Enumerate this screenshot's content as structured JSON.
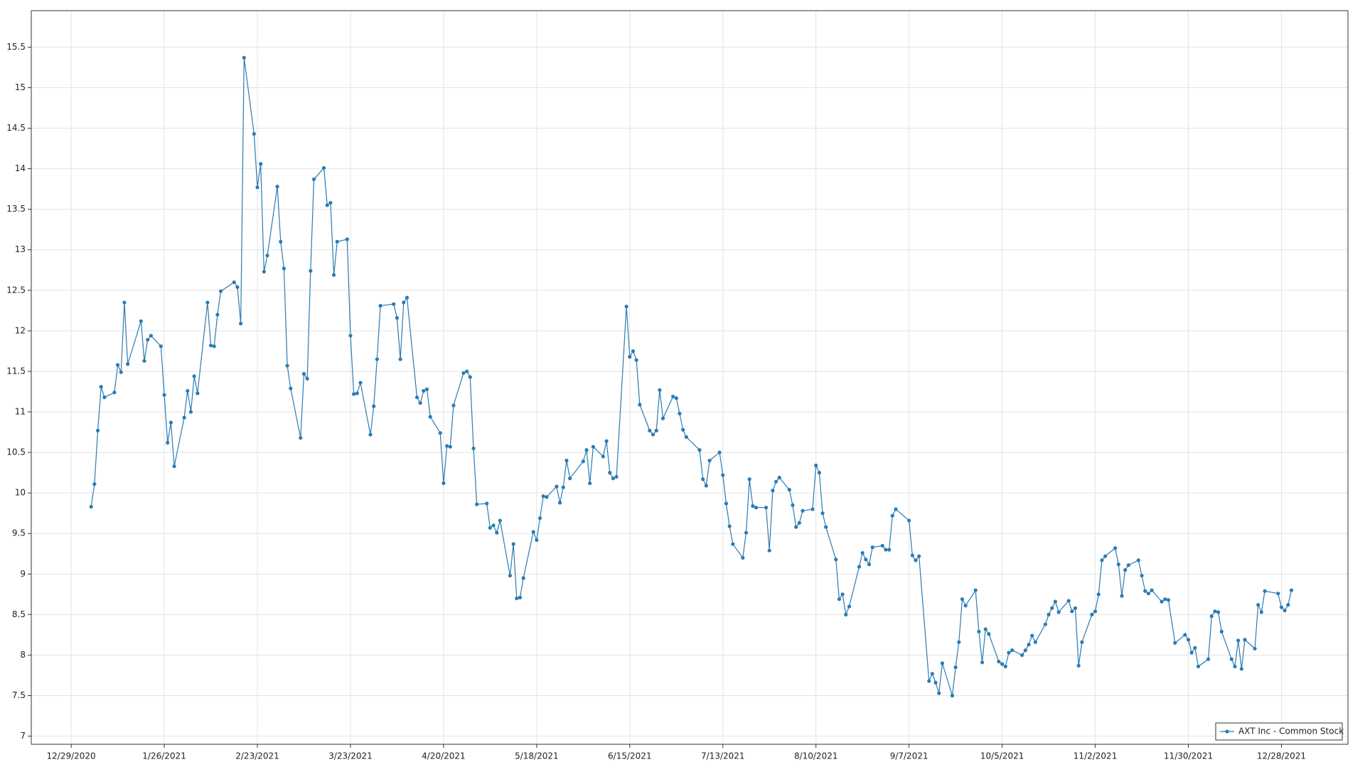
{
  "chart_data": {
    "type": "line",
    "x": [
      "1/4/2021",
      "1/5/2021",
      "1/6/2021",
      "1/7/2021",
      "1/8/2021",
      "1/11/2021",
      "1/12/2021",
      "1/13/2021",
      "1/14/2021",
      "1/15/2021",
      "1/19/2021",
      "1/20/2021",
      "1/21/2021",
      "1/22/2021",
      "1/25/2021",
      "1/26/2021",
      "1/27/2021",
      "1/28/2021",
      "1/29/2021",
      "2/1/2021",
      "2/2/2021",
      "2/3/2021",
      "2/4/2021",
      "2/5/2021",
      "2/8/2021",
      "2/9/2021",
      "2/10/2021",
      "2/11/2021",
      "2/12/2021",
      "2/16/2021",
      "2/17/2021",
      "2/18/2021",
      "2/19/2021",
      "2/22/2021",
      "2/23/2021",
      "2/24/2021",
      "2/25/2021",
      "2/26/2021",
      "3/1/2021",
      "3/2/2021",
      "3/3/2021",
      "3/4/2021",
      "3/5/2021",
      "3/8/2021",
      "3/9/2021",
      "3/10/2021",
      "3/11/2021",
      "3/12/2021",
      "3/15/2021",
      "3/16/2021",
      "3/17/2021",
      "3/18/2021",
      "3/19/2021",
      "3/22/2021",
      "3/23/2021",
      "3/24/2021",
      "3/25/2021",
      "3/26/2021",
      "3/29/2021",
      "3/30/2021",
      "3/31/2021",
      "4/1/2021",
      "4/5/2021",
      "4/6/2021",
      "4/7/2021",
      "4/8/2021",
      "4/9/2021",
      "4/12/2021",
      "4/13/2021",
      "4/14/2021",
      "4/15/2021",
      "4/16/2021",
      "4/19/2021",
      "4/20/2021",
      "4/21/2021",
      "4/22/2021",
      "4/23/2021",
      "4/26/2021",
      "4/27/2021",
      "4/28/2021",
      "4/29/2021",
      "4/30/2021",
      "5/3/2021",
      "5/4/2021",
      "5/5/2021",
      "5/6/2021",
      "5/7/2021",
      "5/10/2021",
      "5/11/2021",
      "5/12/2021",
      "5/13/2021",
      "5/14/2021",
      "5/17/2021",
      "5/18/2021",
      "5/19/2021",
      "5/20/2021",
      "5/21/2021",
      "5/24/2021",
      "5/25/2021",
      "5/26/2021",
      "5/27/2021",
      "5/28/2021",
      "6/1/2021",
      "6/2/2021",
      "6/3/2021",
      "6/4/2021",
      "6/7/2021",
      "6/8/2021",
      "6/9/2021",
      "6/10/2021",
      "6/11/2021",
      "6/14/2021",
      "6/15/2021",
      "6/16/2021",
      "6/17/2021",
      "6/18/2021",
      "6/21/2021",
      "6/22/2021",
      "6/23/2021",
      "6/24/2021",
      "6/25/2021",
      "6/28/2021",
      "6/29/2021",
      "6/30/2021",
      "7/1/2021",
      "7/2/2021",
      "7/6/2021",
      "7/7/2021",
      "7/8/2021",
      "7/9/2021",
      "7/12/2021",
      "7/13/2021",
      "7/14/2021",
      "7/15/2021",
      "7/16/2021",
      "7/19/2021",
      "7/20/2021",
      "7/21/2021",
      "7/22/2021",
      "7/23/2021",
      "7/26/2021",
      "7/27/2021",
      "7/28/2021",
      "7/29/2021",
      "7/30/2021",
      "8/2/2021",
      "8/3/2021",
      "8/4/2021",
      "8/5/2021",
      "8/6/2021",
      "8/9/2021",
      "8/10/2021",
      "8/11/2021",
      "8/12/2021",
      "8/13/2021",
      "8/16/2021",
      "8/17/2021",
      "8/18/2021",
      "8/19/2021",
      "8/20/2021",
      "8/23/2021",
      "8/24/2021",
      "8/25/2021",
      "8/26/2021",
      "8/27/2021",
      "8/30/2021",
      "8/31/2021",
      "9/1/2021",
      "9/2/2021",
      "9/3/2021",
      "9/7/2021",
      "9/8/2021",
      "9/9/2021",
      "9/10/2021",
      "9/13/2021",
      "9/14/2021",
      "9/15/2021",
      "9/16/2021",
      "9/17/2021",
      "9/20/2021",
      "9/21/2021",
      "9/22/2021",
      "9/23/2021",
      "9/24/2021",
      "9/27/2021",
      "9/28/2021",
      "9/29/2021",
      "9/30/2021",
      "10/1/2021",
      "10/4/2021",
      "10/5/2021",
      "10/6/2021",
      "10/7/2021",
      "10/8/2021",
      "10/11/2021",
      "10/12/2021",
      "10/13/2021",
      "10/14/2021",
      "10/15/2021",
      "10/18/2021",
      "10/19/2021",
      "10/20/2021",
      "10/21/2021",
      "10/22/2021",
      "10/25/2021",
      "10/26/2021",
      "10/27/2021",
      "10/28/2021",
      "10/29/2021",
      "11/1/2021",
      "11/2/2021",
      "11/3/2021",
      "11/4/2021",
      "11/5/2021",
      "11/8/2021",
      "11/9/2021",
      "11/10/2021",
      "11/11/2021",
      "11/12/2021",
      "11/15/2021",
      "11/16/2021",
      "11/17/2021",
      "11/18/2021",
      "11/19/2021",
      "11/22/2021",
      "11/23/2021",
      "11/24/2021",
      "11/26/2021",
      "11/29/2021",
      "11/30/2021",
      "12/1/2021",
      "12/2/2021",
      "12/3/2021",
      "12/6/2021",
      "12/7/2021",
      "12/8/2021",
      "12/9/2021",
      "12/10/2021",
      "12/13/2021",
      "12/14/2021",
      "12/15/2021",
      "12/16/2021",
      "12/17/2021",
      "12/20/2021",
      "12/21/2021",
      "12/22/2021",
      "12/23/2021",
      "12/27/2021",
      "12/28/2021",
      "12/29/2021",
      "12/30/2021",
      "12/31/2021"
    ],
    "series": [
      {
        "name": "AXT Inc - Common Stock",
        "color": "#2b7bb3",
        "values": [
          9.83,
          10.11,
          10.77,
          11.31,
          11.18,
          11.24,
          11.58,
          11.49,
          12.35,
          11.59,
          12.12,
          11.63,
          11.89,
          11.94,
          11.81,
          11.21,
          10.62,
          10.87,
          10.33,
          10.93,
          11.26,
          11.0,
          11.44,
          11.23,
          12.35,
          11.82,
          11.81,
          12.2,
          12.49,
          12.6,
          12.54,
          12.09,
          15.37,
          14.43,
          13.77,
          14.06,
          12.73,
          12.93,
          13.78,
          13.1,
          12.77,
          11.57,
          11.29,
          10.68,
          11.47,
          11.41,
          12.74,
          13.87,
          14.01,
          13.55,
          13.58,
          12.69,
          13.1,
          13.13,
          11.94,
          11.22,
          11.23,
          11.36,
          10.72,
          11.07,
          11.65,
          12.31,
          12.33,
          12.16,
          11.65,
          12.35,
          12.41,
          11.18,
          11.11,
          11.26,
          11.28,
          10.94,
          10.74,
          10.12,
          10.58,
          10.57,
          11.08,
          11.48,
          11.5,
          11.43,
          10.55,
          9.86,
          9.87,
          9.57,
          9.6,
          9.51,
          9.66,
          8.98,
          9.37,
          8.7,
          8.71,
          8.95,
          9.52,
          9.42,
          9.69,
          9.96,
          9.95,
          10.08,
          9.88,
          10.07,
          10.4,
          10.18,
          10.39,
          10.53,
          10.12,
          10.57,
          10.45,
          10.64,
          10.25,
          10.18,
          10.2,
          12.3,
          11.68,
          11.75,
          11.64,
          11.09,
          10.77,
          10.72,
          10.77,
          11.27,
          10.92,
          11.19,
          11.17,
          10.98,
          10.78,
          10.69,
          10.53,
          10.17,
          10.09,
          10.4,
          10.5,
          10.22,
          9.87,
          9.59,
          9.37,
          9.2,
          9.51,
          10.17,
          9.84,
          9.82,
          9.82,
          9.29,
          10.03,
          10.14,
          10.19,
          10.04,
          9.85,
          9.58,
          9.63,
          9.78,
          9.8,
          10.34,
          10.25,
          9.75,
          9.58,
          9.18,
          8.69,
          8.75,
          8.5,
          8.6,
          9.09,
          9.26,
          9.18,
          9.12,
          9.33,
          9.35,
          9.3,
          9.3,
          9.72,
          9.8,
          9.66,
          9.23,
          9.17,
          9.22,
          7.68,
          7.77,
          7.66,
          7.53,
          7.9,
          7.5,
          7.85,
          8.16,
          8.69,
          8.61,
          8.8,
          8.29,
          7.91,
          8.32,
          8.26,
          7.92,
          7.89,
          7.86,
          8.03,
          8.06,
          8.0,
          8.06,
          8.13,
          8.24,
          8.16,
          8.38,
          8.5,
          8.58,
          8.66,
          8.53,
          8.67,
          8.54,
          8.58,
          7.87,
          8.16,
          8.5,
          8.54,
          8.75,
          9.17,
          9.22,
          9.32,
          9.12,
          8.73,
          9.05,
          9.11,
          9.17,
          8.98,
          8.79,
          8.76,
          8.8,
          8.66,
          8.69,
          8.68,
          8.15,
          8.25,
          8.19,
          8.03,
          8.09,
          7.86,
          7.95,
          8.48,
          8.54,
          8.53,
          8.29,
          7.95,
          7.86,
          8.18,
          7.83,
          8.19,
          8.08,
          8.62,
          8.53,
          8.79,
          8.76,
          8.59,
          8.55,
          8.62,
          8.8
        ]
      }
    ],
    "xlim": [
      "12/17/2020",
      "1/17/2022"
    ],
    "xticks": [
      "12/29/2020",
      "1/26/2021",
      "2/23/2021",
      "3/23/2021",
      "4/20/2021",
      "5/18/2021",
      "6/15/2021",
      "7/13/2021",
      "8/10/2021",
      "9/7/2021",
      "10/5/2021",
      "11/2/2021",
      "11/30/2021",
      "12/28/2021"
    ],
    "ylim": [
      6.9,
      15.95
    ],
    "yticks": [
      7,
      7.5,
      8,
      8.5,
      9,
      9.5,
      10,
      10.5,
      11,
      11.5,
      12,
      12.5,
      13,
      13.5,
      14,
      14.5,
      15,
      15.5
    ],
    "grid": true,
    "legend": "lower right"
  }
}
